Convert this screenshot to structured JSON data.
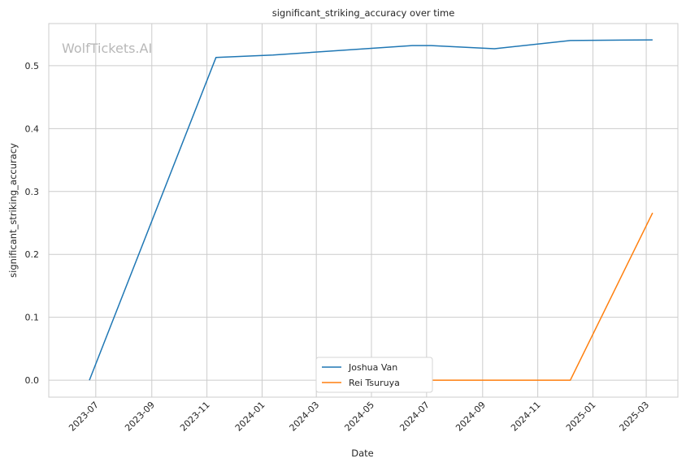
{
  "chart_data": {
    "type": "line",
    "title": "significant_striking_accuracy over time",
    "xlabel": "Date",
    "ylabel": "significant_striking_accuracy",
    "watermark": "WolfTickets.AI",
    "x_ticks": [
      "2023-07",
      "2023-09",
      "2023-11",
      "2024-01",
      "2024-03",
      "2024-05",
      "2024-07",
      "2024-09",
      "2024-11",
      "2025-01",
      "2025-03"
    ],
    "y_ticks": [
      "0.0",
      "0.1",
      "0.2",
      "0.3",
      "0.4",
      "0.5"
    ],
    "y_range": [
      -0.027,
      0.567
    ],
    "x_range": [
      "2023-05-10",
      "2025-04-05"
    ],
    "grid": true,
    "legend_position": "bottom-center",
    "series": [
      {
        "name": "Joshua Van",
        "color": "#1f77b4",
        "points": [
          {
            "x": "2023-06-24",
            "y": 0.0
          },
          {
            "x": "2023-11-11",
            "y": 0.513
          },
          {
            "x": "2024-01-13",
            "y": 0.517
          },
          {
            "x": "2024-06-15",
            "y": 0.532
          },
          {
            "x": "2024-07-06",
            "y": 0.532
          },
          {
            "x": "2024-09-14",
            "y": 0.527
          },
          {
            "x": "2024-12-07",
            "y": 0.54
          },
          {
            "x": "2025-03-08",
            "y": 0.541
          }
        ]
      },
      {
        "name": "Rei Tsuruya",
        "color": "#ff7f0e",
        "points": [
          {
            "x": "2024-06-29",
            "y": 0.0
          },
          {
            "x": "2024-12-07",
            "y": 0.0
          },
          {
            "x": "2025-03-08",
            "y": 0.266
          }
        ]
      }
    ]
  }
}
